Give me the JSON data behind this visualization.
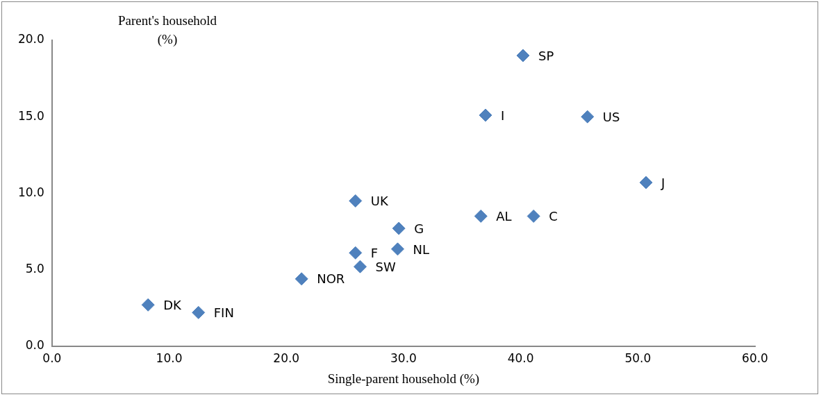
{
  "chart_data": {
    "type": "scatter",
    "xlabel": "Single-parent household (%)",
    "ylabel": "Parent's household\n(%)",
    "x": [
      40.2,
      37.0,
      45.7,
      50.7,
      25.9,
      36.6,
      41.1,
      29.6,
      29.5,
      25.9,
      26.3,
      21.3,
      8.2,
      12.5
    ],
    "series": [
      {
        "color": "#4f81bd",
        "values": [
          19.0,
          15.1,
          15.0,
          10.7,
          9.5,
          8.5,
          8.5,
          7.7,
          6.35,
          6.1,
          5.2,
          4.4,
          2.7,
          2.2
        ],
        "value_labels": [
          "SP",
          "I",
          "US",
          "J",
          "UK",
          "AL",
          "C",
          "G",
          "NL",
          "F",
          "SW",
          "NOR",
          "DK",
          "FIN"
        ]
      }
    ],
    "marker": "diamond",
    "grid": false,
    "legend": false,
    "xlim": [
      0,
      60
    ],
    "xticks": [
      {
        "value": 0,
        "label": "0.0"
      },
      {
        "value": 10,
        "label": "10.0"
      },
      {
        "value": 20,
        "label": "20.0"
      },
      {
        "value": 30,
        "label": "30.0"
      },
      {
        "value": 40,
        "label": "40.0"
      },
      {
        "value": 50,
        "label": "50.0"
      },
      {
        "value": 60,
        "label": "60.0"
      }
    ],
    "ylim": [
      0,
      20
    ],
    "yticks": [
      {
        "value": 0,
        "label": "0.0"
      },
      {
        "value": 5,
        "label": "5.0"
      },
      {
        "value": 10,
        "label": "10.0"
      },
      {
        "value": 15,
        "label": "15.0"
      },
      {
        "value": 20,
        "label": "20.0"
      }
    ]
  }
}
